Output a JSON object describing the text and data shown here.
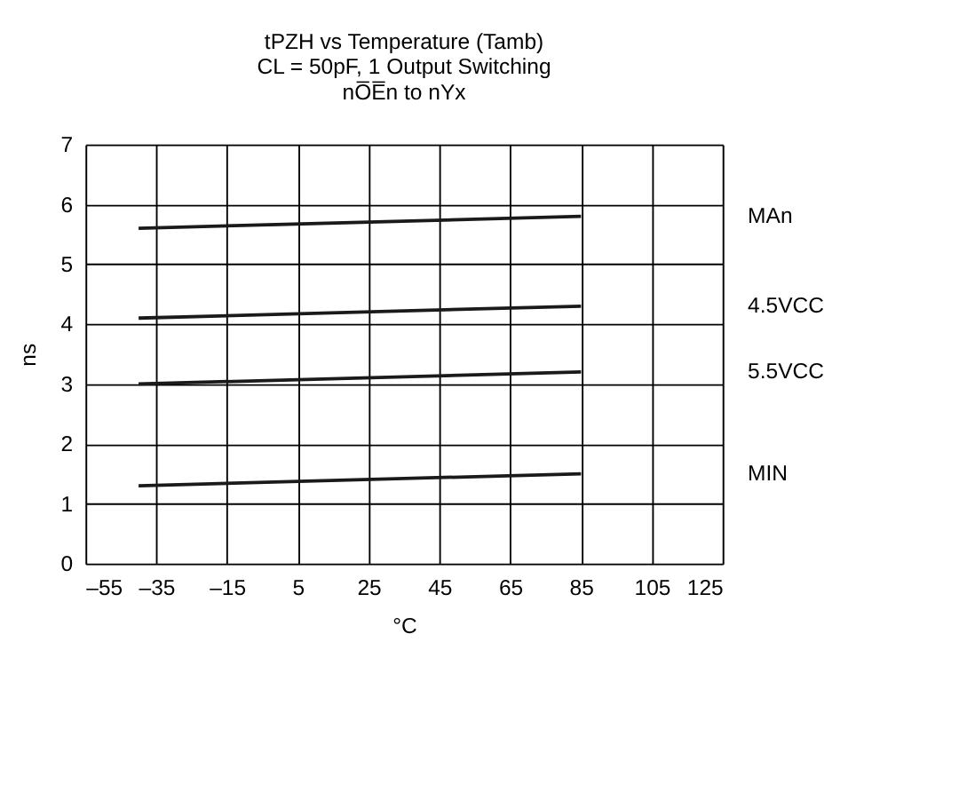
{
  "chart_data": {
    "type": "line",
    "title": [
      "tPZH vs Temperature (Tamb)",
      "CL = 50pF, 1 Output Switching",
      "nO̅E̅n to nYx"
    ],
    "xlabel": "°C",
    "ylabel": "ns",
    "x": [
      -40,
      85
    ],
    "series": [
      {
        "name": "MAn",
        "color": "#1a1a1a",
        "values": [
          5.6,
          5.8
        ]
      },
      {
        "name": "4.5VCC",
        "color": "#1a1a1a",
        "values": [
          4.1,
          4.3
        ]
      },
      {
        "name": "5.5VCC",
        "color": "#1a1a1a",
        "values": [
          3.0,
          3.2
        ]
      },
      {
        "name": "MIN",
        "color": "#1a1a1a",
        "values": [
          1.3,
          1.5
        ]
      }
    ],
    "xlim": [
      -55,
      125
    ],
    "xticks": [
      {
        "value": -55,
        "label": "–55"
      },
      {
        "value": -35,
        "label": "–35"
      },
      {
        "value": -15,
        "label": "–15"
      },
      5,
      25,
      45,
      65,
      85,
      105,
      125
    ],
    "ylim": [
      0,
      7
    ],
    "yticks": [
      0,
      1,
      2,
      3,
      4,
      5,
      6,
      7
    ],
    "grid": true,
    "marker": "none",
    "line_style": "solid"
  }
}
